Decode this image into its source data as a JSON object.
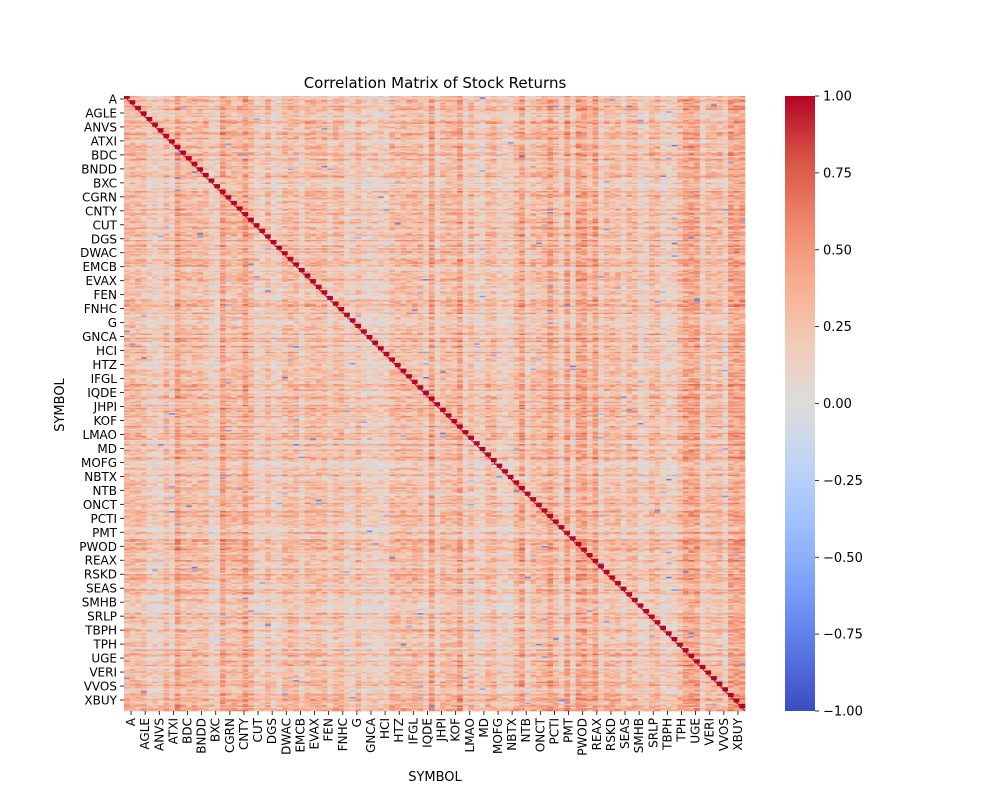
{
  "chart_data": {
    "type": "heatmap",
    "title": "Correlation Matrix of Stock Returns",
    "xlabel": "SYMBOL",
    "ylabel": "SYMBOL",
    "colormap": "coolwarm",
    "colorbar": {
      "min": -1.0,
      "max": 1.0,
      "ticks": [
        -1.0,
        -0.75,
        -0.5,
        -0.25,
        0.0,
        0.25,
        0.5,
        0.75,
        1.0
      ],
      "tick_labels": [
        "−1.00",
        "−0.75",
        "−0.50",
        "−0.25",
        "0.00",
        "0.25",
        "0.50",
        "0.75",
        "1.00"
      ],
      "colors": [
        "#3b4cc0",
        "#5977e3",
        "#7b9ff9",
        "#9ebeff",
        "#c0d4f5",
        "#dddcdc",
        "#f2cbb7",
        "#f7ac8e",
        "#ee8468",
        "#d65244",
        "#b40426"
      ]
    },
    "x_tick_labels": [
      "A",
      "AGLE",
      "ANVS",
      "ATXI",
      "BDC",
      "BNDD",
      "BXC",
      "CGRN",
      "CNTY",
      "CUT",
      "DGS",
      "DWAC",
      "EMCB",
      "EVAX",
      "FEN",
      "FNHC",
      "G",
      "GNCA",
      "HCI",
      "HTZ",
      "IFGL",
      "IQDE",
      "JHPI",
      "KOF",
      "LMAO",
      "MD",
      "MOFG",
      "NBTX",
      "NTB",
      "ONCT",
      "PCTI",
      "PMT",
      "PWOD",
      "REAX",
      "RSKD",
      "SEAS",
      "SMHB",
      "SRLP",
      "TBPH",
      "TPH",
      "UGE",
      "VERI",
      "VVOS",
      "XBUY"
    ],
    "y_tick_labels": [
      "A",
      "AGLE",
      "ANVS",
      "ATXI",
      "BDC",
      "BNDD",
      "BXC",
      "CGRN",
      "CNTY",
      "CUT",
      "DGS",
      "DWAC",
      "EMCB",
      "EVAX",
      "FEN",
      "FNHC",
      "G",
      "GNCA",
      "HCI",
      "HTZ",
      "IFGL",
      "IQDE",
      "JHPI",
      "KOF",
      "LMAO",
      "MD",
      "MOFG",
      "NBTX",
      "NTB",
      "ONCT",
      "PCTI",
      "PMT",
      "PWOD",
      "REAX",
      "RSKD",
      "SEAS",
      "SMHB",
      "SRLP",
      "TBPH",
      "TPH",
      "UGE",
      "VERI",
      "VVOS",
      "XBUY"
    ],
    "diagonal": 1.0,
    "typical_offdiagonal_range": [
      0.0,
      0.5
    ],
    "grid": false
  }
}
